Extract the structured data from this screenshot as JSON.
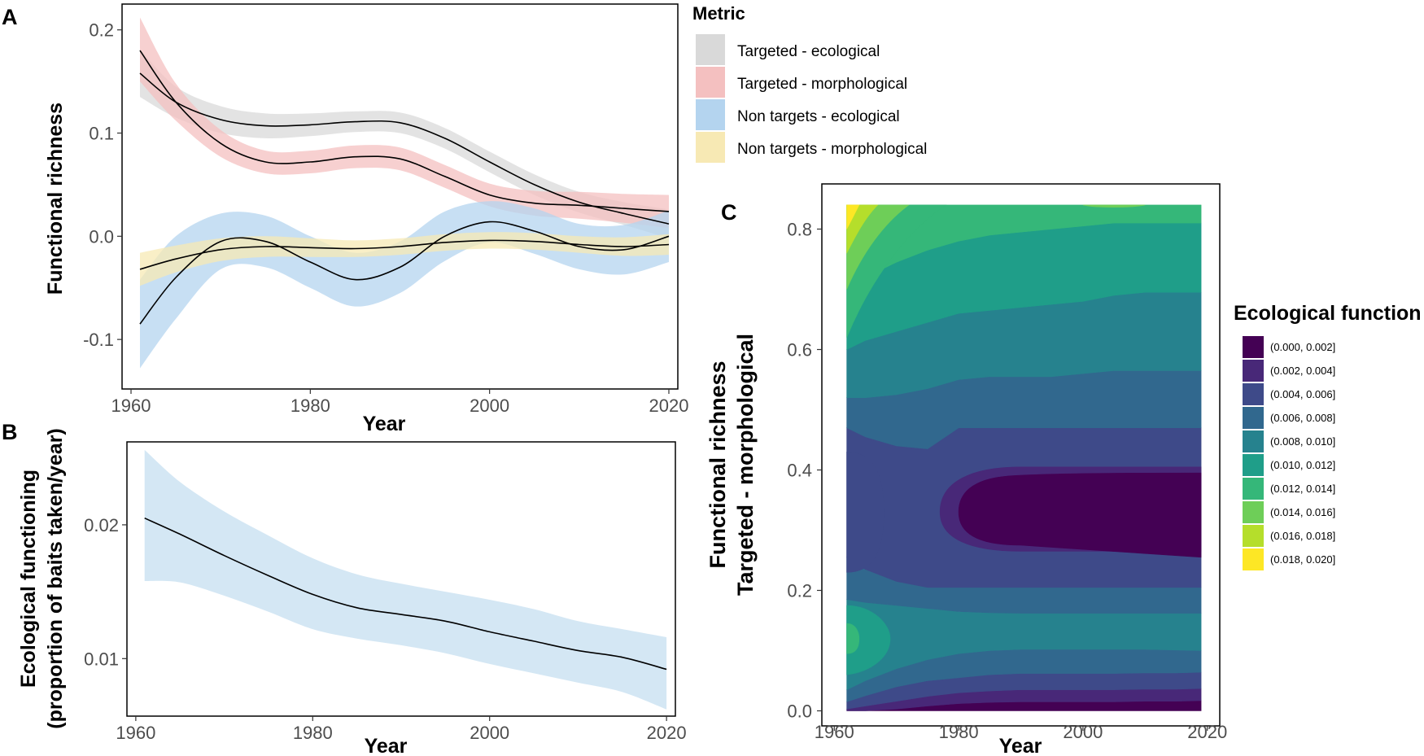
{
  "chart_data": [
    {
      "panel": "A",
      "type": "line",
      "xlabel": "Year",
      "ylabel": "Functional richness",
      "xlim": [
        1959,
        2021
      ],
      "ylim": [
        -0.148,
        0.225
      ],
      "xticks": [
        1960,
        1980,
        2000,
        2020
      ],
      "yticks": [
        -0.1,
        0.0,
        0.1,
        0.2
      ],
      "ytick_labels": [
        "-0.1",
        "0.0",
        "0.1",
        "0.2"
      ],
      "legend_title": "Metric",
      "series": [
        {
          "name": "Targeted - ecological",
          "color": "#d9d9d9",
          "x": [
            1961,
            1965,
            1970,
            1975,
            1980,
            1985,
            1990,
            1995,
            2000,
            2005,
            2010,
            2015,
            2020
          ],
          "y": [
            0.158,
            0.13,
            0.113,
            0.107,
            0.108,
            0.111,
            0.11,
            0.095,
            0.072,
            0.05,
            0.033,
            0.022,
            0.012
          ],
          "lower": [
            0.135,
            0.115,
            0.1,
            0.095,
            0.097,
            0.101,
            0.1,
            0.085,
            0.062,
            0.04,
            0.023,
            0.011,
            -0.002
          ],
          "upper": [
            0.181,
            0.145,
            0.126,
            0.119,
            0.119,
            0.121,
            0.12,
            0.105,
            0.082,
            0.06,
            0.043,
            0.033,
            0.026
          ]
        },
        {
          "name": "Targeted - morphological",
          "color": "#f4c0c0",
          "x": [
            1961,
            1965,
            1970,
            1975,
            1980,
            1985,
            1990,
            1995,
            2000,
            2005,
            2010,
            2015,
            2020
          ],
          "y": [
            0.18,
            0.13,
            0.09,
            0.072,
            0.072,
            0.077,
            0.075,
            0.058,
            0.04,
            0.032,
            0.03,
            0.027,
            0.024
          ],
          "lower": [
            0.15,
            0.112,
            0.077,
            0.061,
            0.061,
            0.066,
            0.064,
            0.047,
            0.029,
            0.02,
            0.017,
            0.013,
            0.008
          ],
          "upper": [
            0.212,
            0.148,
            0.103,
            0.083,
            0.083,
            0.088,
            0.086,
            0.069,
            0.051,
            0.044,
            0.043,
            0.041,
            0.04
          ]
        },
        {
          "name": "Non targets - ecological",
          "color": "#b4d4ef",
          "x": [
            1961,
            1965,
            1970,
            1975,
            1980,
            1985,
            1990,
            1995,
            2000,
            2005,
            2010,
            2015,
            2020
          ],
          "y": [
            -0.085,
            -0.04,
            -0.005,
            -0.005,
            -0.025,
            -0.042,
            -0.03,
            0.0,
            0.014,
            0.005,
            -0.01,
            -0.013,
            0.0
          ],
          "lower": [
            -0.128,
            -0.08,
            -0.032,
            -0.03,
            -0.05,
            -0.068,
            -0.055,
            -0.024,
            -0.006,
            -0.017,
            -0.032,
            -0.037,
            -0.025
          ],
          "upper": [
            -0.042,
            0.0,
            0.022,
            0.02,
            0.0,
            -0.016,
            -0.005,
            0.024,
            0.034,
            0.027,
            0.012,
            0.011,
            0.025
          ]
        },
        {
          "name": "Non targets - morphological",
          "color": "#f7e9b4",
          "x": [
            1961,
            1965,
            1970,
            1975,
            1980,
            1985,
            1990,
            1995,
            2000,
            2005,
            2010,
            2015,
            2020
          ],
          "y": [
            -0.032,
            -0.022,
            -0.013,
            -0.01,
            -0.011,
            -0.012,
            -0.01,
            -0.006,
            -0.004,
            -0.005,
            -0.008,
            -0.01,
            -0.008
          ],
          "lower": [
            -0.048,
            -0.035,
            -0.024,
            -0.02,
            -0.02,
            -0.02,
            -0.018,
            -0.014,
            -0.012,
            -0.013,
            -0.016,
            -0.019,
            -0.018
          ],
          "upper": [
            -0.016,
            -0.009,
            -0.002,
            0.0,
            -0.002,
            -0.004,
            -0.002,
            0.002,
            0.004,
            0.003,
            0.0,
            -0.001,
            0.002
          ]
        }
      ]
    },
    {
      "panel": "B",
      "type": "line",
      "xlabel": "Year",
      "ylabel_line1": "Ecological functioning",
      "ylabel_line2": "(proportion of baits taken/year)",
      "xlim": [
        1959,
        2021
      ],
      "ylim": [
        0.0057,
        0.0262
      ],
      "xticks": [
        1960,
        1980,
        2000,
        2020
      ],
      "yticks": [
        0.01,
        0.02
      ],
      "ytick_labels": [
        "0.01",
        "0.02"
      ],
      "series": [
        {
          "name": "Ecological functioning",
          "color": "#c6dff0",
          "x": [
            1961,
            1965,
            1970,
            1975,
            1980,
            1985,
            1990,
            1995,
            2000,
            2005,
            2010,
            2015,
            2020
          ],
          "y": [
            0.0205,
            0.0193,
            0.0177,
            0.0162,
            0.0148,
            0.0138,
            0.0133,
            0.0128,
            0.012,
            0.0113,
            0.0106,
            0.0101,
            0.0092
          ],
          "lower": [
            0.0158,
            0.0157,
            0.0147,
            0.0135,
            0.0122,
            0.0115,
            0.011,
            0.0104,
            0.0096,
            0.0089,
            0.0082,
            0.0075,
            0.0062
          ],
          "upper": [
            0.0256,
            0.0232,
            0.021,
            0.0192,
            0.0175,
            0.0163,
            0.0156,
            0.015,
            0.0144,
            0.0137,
            0.0128,
            0.0122,
            0.0116
          ]
        }
      ]
    },
    {
      "panel": "C",
      "type": "heatmap",
      "subtype": "filled-contour",
      "xlabel": "Year",
      "ylabel_line1": "Functional richness",
      "ylabel_line2": "Targeted - morphological",
      "xlim": [
        1958,
        2022
      ],
      "ylim": [
        -0.025,
        0.875
      ],
      "xticks": [
        1960,
        1980,
        2000,
        2020
      ],
      "yticks": [
        0.0,
        0.2,
        0.4,
        0.6,
        0.8
      ],
      "ytick_labels": [
        "0.0",
        "0.2",
        "0.4",
        "0.6",
        "0.8"
      ],
      "data_xrange": [
        1962,
        2019
      ],
      "data_yrange": [
        0.0,
        0.84
      ],
      "legend_title": "Ecological function",
      "bins": [
        {
          "label": "(0.000, 0.002]",
          "color": "#440154"
        },
        {
          "label": "(0.002, 0.004]",
          "color": "#482878"
        },
        {
          "label": "(0.004, 0.006]",
          "color": "#3e4a89"
        },
        {
          "label": "(0.006, 0.008]",
          "color": "#31688e"
        },
        {
          "label": "(0.008, 0.010]",
          "color": "#26828e"
        },
        {
          "label": "(0.010, 0.012]",
          "color": "#1f9e89"
        },
        {
          "label": "(0.012, 0.014]",
          "color": "#35b779"
        },
        {
          "label": "(0.014, 0.016]",
          "color": "#6ece58"
        },
        {
          "label": "(0.016, 0.018]",
          "color": "#b5de2b"
        },
        {
          "label": "(0.018, 0.020]",
          "color": "#fde725"
        }
      ]
    }
  ],
  "panel_labels": {
    "a": "A",
    "b": "B",
    "c": "C"
  }
}
